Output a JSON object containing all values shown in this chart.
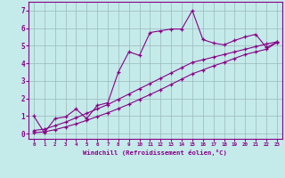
{
  "xlabel": "Windchill (Refroidissement éolien,°C)",
  "xlim": [
    -0.5,
    23.5
  ],
  "ylim": [
    -0.3,
    7.5
  ],
  "xticks": [
    0,
    1,
    2,
    3,
    4,
    5,
    6,
    7,
    8,
    9,
    10,
    11,
    12,
    13,
    14,
    15,
    16,
    17,
    18,
    19,
    20,
    21,
    22,
    23
  ],
  "yticks": [
    0,
    1,
    2,
    3,
    4,
    5,
    6,
    7
  ],
  "bg_color": "#c5eaea",
  "line_color": "#880088",
  "grid_color": "#9ab8b8",
  "series1_x": [
    0,
    1,
    2,
    3,
    4,
    5,
    6,
    7,
    8,
    9,
    10,
    11,
    12,
    13,
    14,
    15,
    16,
    17,
    18,
    19,
    20,
    21,
    22,
    23
  ],
  "series1_y": [
    1.0,
    0.05,
    0.85,
    0.95,
    1.4,
    0.85,
    1.6,
    1.75,
    3.5,
    4.65,
    4.45,
    5.75,
    5.85,
    5.95,
    5.95,
    7.0,
    5.35,
    5.15,
    5.05,
    5.3,
    5.5,
    5.65,
    4.9,
    5.2
  ],
  "series2_x": [
    0,
    1,
    2,
    3,
    4,
    5,
    6,
    7,
    8,
    9,
    10,
    11,
    12,
    13,
    14,
    15,
    16,
    17,
    18,
    19,
    20,
    21,
    22,
    23
  ],
  "series2_y": [
    0.05,
    0.1,
    0.22,
    0.38,
    0.55,
    0.75,
    0.97,
    1.18,
    1.42,
    1.67,
    1.95,
    2.22,
    2.5,
    2.8,
    3.1,
    3.4,
    3.62,
    3.85,
    4.05,
    4.28,
    4.5,
    4.65,
    4.8,
    5.18
  ],
  "series3_x": [
    0,
    1,
    2,
    3,
    4,
    5,
    6,
    7,
    8,
    9,
    10,
    11,
    12,
    13,
    14,
    15,
    16,
    17,
    18,
    19,
    20,
    21,
    22,
    23
  ],
  "series3_y": [
    0.18,
    0.25,
    0.45,
    0.65,
    0.9,
    1.15,
    1.4,
    1.65,
    1.95,
    2.25,
    2.55,
    2.85,
    3.15,
    3.45,
    3.75,
    4.05,
    4.2,
    4.35,
    4.5,
    4.65,
    4.8,
    4.95,
    5.1,
    5.22
  ]
}
